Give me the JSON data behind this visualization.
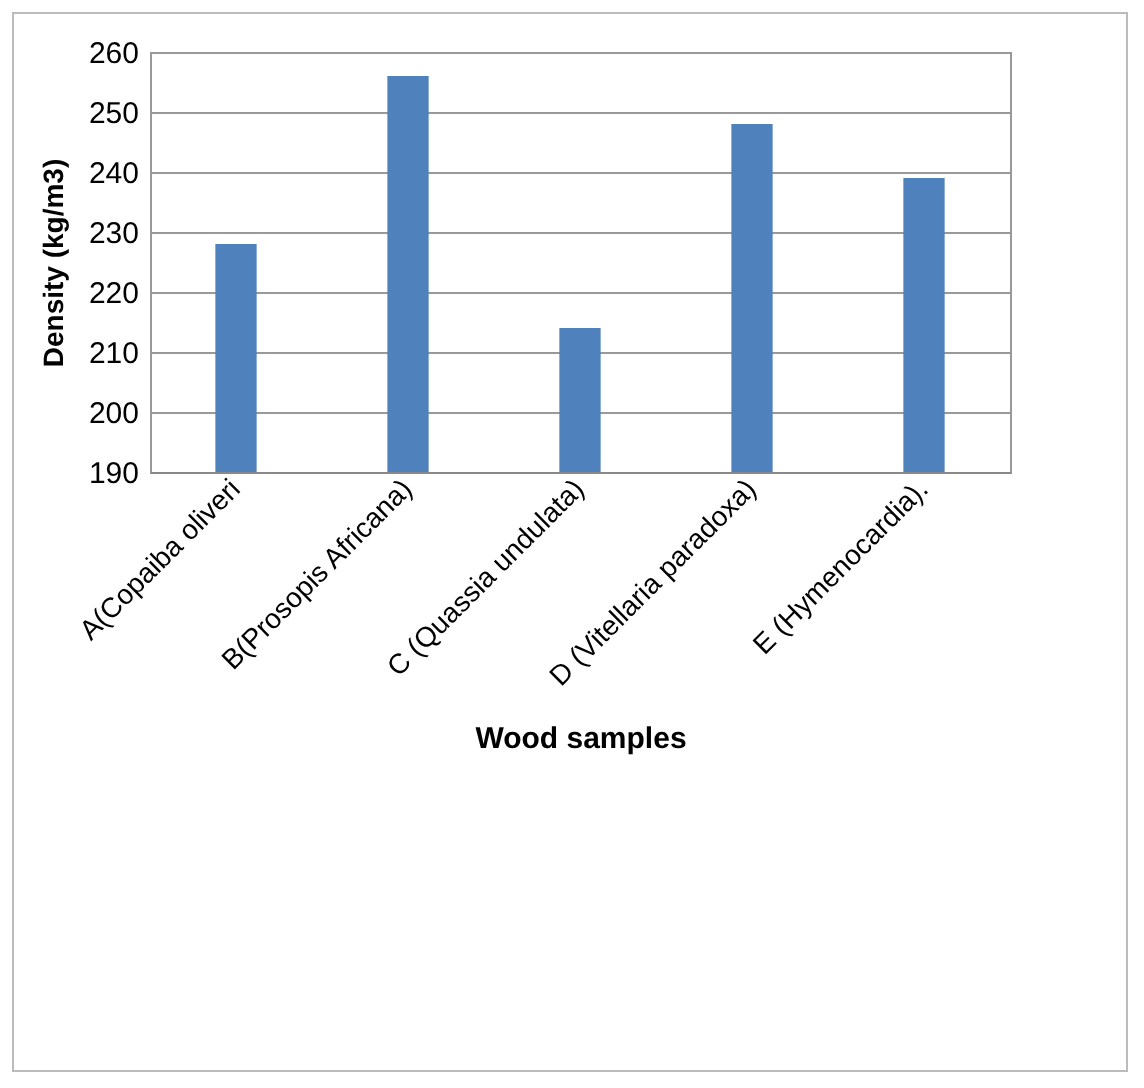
{
  "chart_data": {
    "type": "bar",
    "xlabel": "Wood samples",
    "ylabel": "Density (kg/m3)",
    "categories": [
      "A(Copaiba oliveri",
      "B(Prosopis Africana)",
      "C (Quassia undulata)",
      "D (Vitellaria paradoxa)",
      "E (Hymenocardia)."
    ],
    "values": [
      228,
      256,
      214,
      248,
      239
    ],
    "color": "#4f81bd",
    "ylim": [
      190,
      260
    ],
    "yticks": [
      190,
      200,
      210,
      220,
      230,
      240,
      250,
      260
    ],
    "grid": "y"
  }
}
